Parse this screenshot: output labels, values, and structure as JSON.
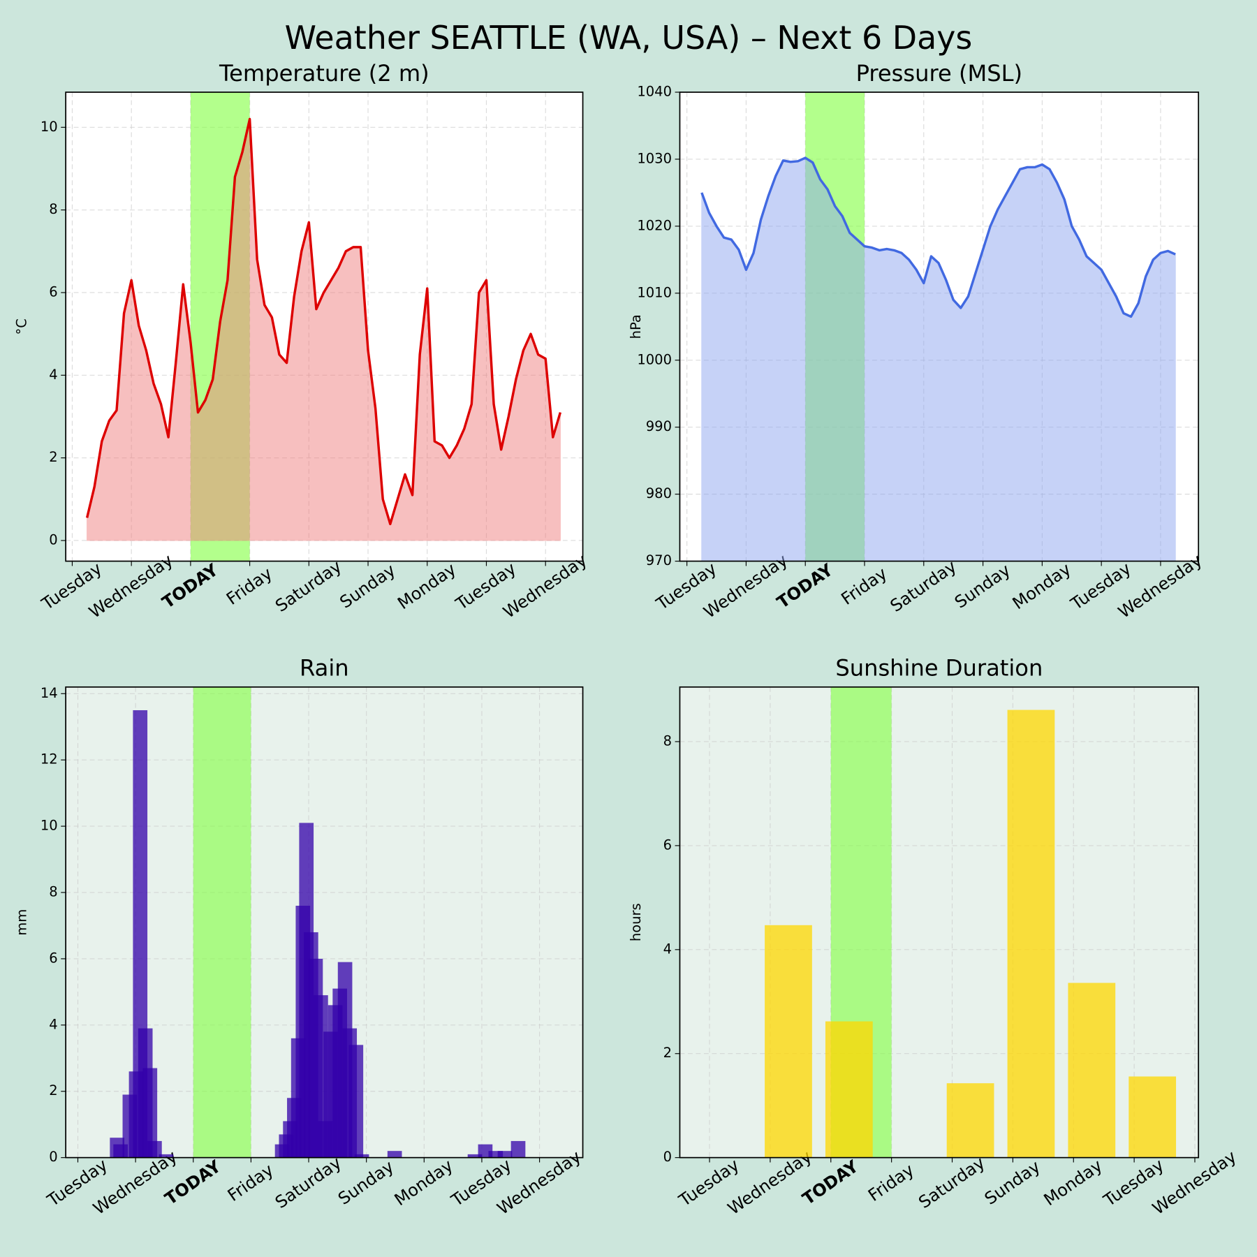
{
  "title": "Weather SEATTLE (WA, USA) – Next 6 Days",
  "chart_data": [
    {
      "type": "line",
      "title": "Temperature (2 m)",
      "y_label": "°C",
      "color": "#dd0000",
      "fill": true,
      "fill_color": "#f08080",
      "axes_color": "#ffffff",
      "grid": true,
      "highlight": [
        2,
        3
      ],
      "highlight_color": "#80ff40",
      "highlight_label_color": "#55bb11",
      "xlim": [
        -0.11,
        8.63
      ],
      "ylim": [
        -0.5,
        10.85
      ],
      "yticks": [
        0,
        2,
        4,
        6,
        8,
        10
      ],
      "xticks": [
        {
          "value": 0,
          "label": "Tuesday"
        },
        {
          "value": 1,
          "label": "Wednesday"
        },
        {
          "value": 2,
          "label": "TODAY"
        },
        {
          "value": 3,
          "label": "Friday"
        },
        {
          "value": 4,
          "label": "Saturday"
        },
        {
          "value": 5,
          "label": "Sunday"
        },
        {
          "value": 6,
          "label": "Monday"
        },
        {
          "value": 7,
          "label": "Tuesday"
        },
        {
          "value": 8,
          "label": "Wednesday"
        }
      ],
      "x": [
        0.25,
        0.375,
        0.5,
        0.625,
        0.75,
        0.875,
        1,
        1.125,
        1.25,
        1.375,
        1.5,
        1.625,
        1.75,
        1.875,
        2,
        2.125,
        2.25,
        2.375,
        2.5,
        2.625,
        2.75,
        2.875,
        3,
        3.125,
        3.25,
        3.375,
        3.5,
        3.625,
        3.75,
        3.875,
        4,
        4.125,
        4.25,
        4.375,
        4.5,
        4.625,
        4.75,
        4.875,
        5,
        5.125,
        5.25,
        5.375,
        5.5,
        5.625,
        5.75,
        5.875,
        6,
        6.125,
        6.25,
        6.375,
        6.5,
        6.625,
        6.75,
        6.875,
        7,
        7.125,
        7.25,
        7.375,
        7.5,
        7.625,
        7.75,
        7.875,
        8,
        8.125,
        8.25
      ],
      "values": [
        0.55,
        1.3,
        2.4,
        2.9,
        3.15,
        5.5,
        6.3,
        5.2,
        4.6,
        3.8,
        3.3,
        2.5,
        4.3,
        6.2,
        4.8,
        3.1,
        3.4,
        3.9,
        5.3,
        6.3,
        8.8,
        9.4,
        10.2,
        6.8,
        5.7,
        5.4,
        4.5,
        4.3,
        5.9,
        7.0,
        7.7,
        5.6,
        6.0,
        6.3,
        6.6,
        7.0,
        7.1,
        7.1,
        4.6,
        3.2,
        1.0,
        0.4,
        1.0,
        1.6,
        1.1,
        4.5,
        6.1,
        2.4,
        2.3,
        2.0,
        2.3,
        2.7,
        3.3,
        6.0,
        6.3,
        3.3,
        2.2,
        3.0,
        3.9,
        4.6,
        5.0,
        4.5,
        4.4,
        2.5,
        3.1
      ]
    },
    {
      "type": "line",
      "title": "Pressure (MSL)",
      "y_label": "hPa",
      "color": "#4169e1",
      "fill": true,
      "fill_color": "#8ea6f0",
      "axes_color": "#ffffff",
      "grid": true,
      "highlight": [
        2,
        3
      ],
      "highlight_color": "#80ff40",
      "highlight_label_color": "#55bb11",
      "xlim": [
        -0.12,
        8.64
      ],
      "ylim": [
        970,
        1040
      ],
      "yticks": [
        970,
        980,
        990,
        1000,
        1010,
        1020,
        1030,
        1040
      ],
      "xticks": [
        {
          "value": 0,
          "label": "Tuesday"
        },
        {
          "value": 1,
          "label": "Wednesday"
        },
        {
          "value": 2,
          "label": "TODAY"
        },
        {
          "value": 3,
          "label": "Friday"
        },
        {
          "value": 4,
          "label": "Saturday"
        },
        {
          "value": 5,
          "label": "Sunday"
        },
        {
          "value": 6,
          "label": "Monday"
        },
        {
          "value": 7,
          "label": "Tuesday"
        },
        {
          "value": 8,
          "label": "Wednesday"
        }
      ],
      "x": [
        0.25,
        0.375,
        0.5,
        0.625,
        0.75,
        0.875,
        1,
        1.125,
        1.25,
        1.375,
        1.5,
        1.625,
        1.75,
        1.875,
        2,
        2.125,
        2.25,
        2.375,
        2.5,
        2.625,
        2.75,
        2.875,
        3,
        3.125,
        3.25,
        3.375,
        3.5,
        3.625,
        3.75,
        3.875,
        4,
        4.125,
        4.25,
        4.375,
        4.5,
        4.625,
        4.75,
        4.875,
        5,
        5.125,
        5.25,
        5.375,
        5.5,
        5.625,
        5.75,
        5.875,
        6,
        6.125,
        6.25,
        6.375,
        6.5,
        6.625,
        6.75,
        6.875,
        7,
        7.125,
        7.25,
        7.375,
        7.5,
        7.625,
        7.75,
        7.875,
        8,
        8.125,
        8.25
      ],
      "values": [
        1025,
        1022,
        1020,
        1018.3,
        1018,
        1016.5,
        1013.5,
        1016,
        1021,
        1024.5,
        1027.5,
        1029.8,
        1029.6,
        1029.7,
        1030.2,
        1029.5,
        1027,
        1025.5,
        1023,
        1021.5,
        1019,
        1018,
        1017,
        1016.8,
        1016.4,
        1016.6,
        1016.4,
        1016,
        1015,
        1013.5,
        1011.5,
        1015.5,
        1014.5,
        1012,
        1009,
        1007.8,
        1009.5,
        1013,
        1016.5,
        1020,
        1022.5,
        1024.5,
        1026.5,
        1028.5,
        1028.8,
        1028.8,
        1029.2,
        1028.5,
        1026.5,
        1024,
        1020,
        1018,
        1015.5,
        1014.5,
        1013.5,
        1011.5,
        1009.5,
        1007,
        1006.5,
        1008.5,
        1012.5,
        1015,
        1016,
        1016.3,
        1015.8
      ]
    },
    {
      "type": "bar",
      "title": "Rain",
      "y_label": "mm",
      "color": "#3300aa",
      "axes_color": "#e8f2ec",
      "grid": true,
      "highlight": [
        2,
        3
      ],
      "highlight_color": "#80ff40",
      "highlight_label_color": "#55bb11",
      "xlim": [
        -0.21,
        8.75
      ],
      "ylim": [
        0,
        14.2
      ],
      "yticks": [
        0,
        2,
        4,
        6,
        8,
        10,
        12,
        14
      ],
      "xticks": [
        {
          "value": 0,
          "label": "Tuesday"
        },
        {
          "value": 1,
          "label": "Wednesday"
        },
        {
          "value": 2,
          "label": "TODAY"
        },
        {
          "value": 3,
          "label": "Friday"
        },
        {
          "value": 4,
          "label": "Saturday"
        },
        {
          "value": 5,
          "label": "Sunday"
        },
        {
          "value": 6,
          "label": "Monday"
        },
        {
          "value": 7,
          "label": "Tuesday"
        },
        {
          "value": 8,
          "label": "Wednesday"
        }
      ],
      "x": [
        0.68,
        0.74,
        0.9,
        1.01,
        1.08,
        1.17,
        1.25,
        1.33,
        1.53,
        3.54,
        3.61,
        3.68,
        3.75,
        3.82,
        3.9,
        3.96,
        4.04,
        4.12,
        4.21,
        4.29,
        4.38,
        4.46,
        4.54,
        4.63,
        4.71,
        4.82,
        4.92,
        5.49,
        6.88,
        7.06,
        7.24,
        7.4,
        7.63
      ],
      "values": [
        0.6,
        0.4,
        1.9,
        2.6,
        13.5,
        3.9,
        2.7,
        0.5,
        0.1,
        0.4,
        0.7,
        1.1,
        1.8,
        3.6,
        7.6,
        10.1,
        6.8,
        6.0,
        4.9,
        1.1,
        3.8,
        4.6,
        5.1,
        5.9,
        3.9,
        3.4,
        0.1,
        0.2,
        0.1,
        0.4,
        0.2,
        0.2,
        0.5
      ]
    },
    {
      "type": "bar",
      "title": "Sunshine Duration",
      "y_label": "hours",
      "color": "#ffd700",
      "axes_color": "#e8f2ec",
      "grid": true,
      "highlight": [
        2,
        3
      ],
      "highlight_color": "#80ff40",
      "highlight_label_color": "#55bb11",
      "xlim": [
        -0.49,
        8.06
      ],
      "ylim": [
        0,
        9.05
      ],
      "yticks": [
        0,
        2,
        4,
        6,
        8
      ],
      "xticks": [
        {
          "value": 0,
          "label": "Tuesday"
        },
        {
          "value": 1,
          "label": "Wednesday"
        },
        {
          "value": 2,
          "label": "TODAY"
        },
        {
          "value": 3,
          "label": "Friday"
        },
        {
          "value": 4,
          "label": "Saturday"
        },
        {
          "value": 5,
          "label": "Sunday"
        },
        {
          "value": 6,
          "label": "Monday"
        },
        {
          "value": 7,
          "label": "Tuesday"
        },
        {
          "value": 8,
          "label": "Wednesday"
        }
      ],
      "x": [
        0.3,
        1.3,
        2.3,
        3.3,
        4.3,
        5.3,
        6.3,
        7.3
      ],
      "values": [
        0,
        4.47,
        2.62,
        0,
        1.43,
        8.61,
        3.36,
        1.56
      ]
    }
  ]
}
